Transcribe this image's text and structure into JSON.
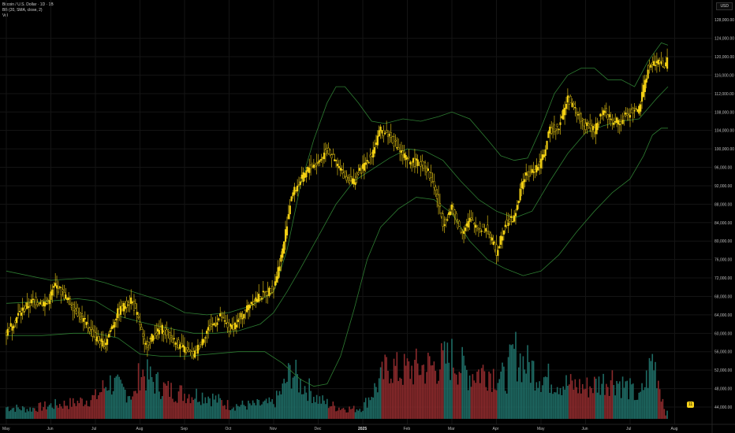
{
  "legend": {
    "line1": "Bitcoin / U.S. Dollar · 1D · 1B",
    "line2": "BB (20, SMA, close, 2)",
    "line3": "Vol"
  },
  "currency": "USD",
  "last_badge": "11",
  "colors": {
    "background": "#000000",
    "candle_up": "#f6d314",
    "candle_down": "#f6d314",
    "band": "#2e7d32",
    "vol_up": "#1e6b64",
    "vol_down": "#8b2a2c"
  },
  "chart_data": {
    "type": "candlestick",
    "title": "Bitcoin / U.S. Dollar · 1D · 1B",
    "y_axis": {
      "label": "USD",
      "ticks": [
        124000,
        120000,
        116000,
        112000,
        108000,
        104000,
        100000,
        96000,
        92000,
        88000,
        84000,
        80000,
        76000,
        72000,
        68000,
        64000,
        60000,
        56000,
        52000,
        48000,
        44000
      ],
      "tick_labels": [
        "124,000.00",
        "120,000.00",
        "116,000.00",
        "112,000.00",
        "108,000.00",
        "104,000.00",
        "100,000.00",
        "96,000.00",
        "92,000.00",
        "88,000.00",
        "84,000.00",
        "80,000.00",
        "76,000.00",
        "72,000.00",
        "68,000.00",
        "64,000.00",
        "60,000.00",
        "56,000.00",
        "52,000.00",
        "48,000.00",
        "44,000.00"
      ],
      "extra_top_label": "128,000.00",
      "range": [
        42000,
        131000
      ]
    },
    "x_axis": {
      "labels": [
        {
          "label": "May",
          "month_index": 0
        },
        {
          "label": "Jun",
          "month_index": 1
        },
        {
          "label": "Jul",
          "month_index": 2
        },
        {
          "label": "Aug",
          "month_index": 3
        },
        {
          "label": "Sep",
          "month_index": 4
        },
        {
          "label": "Oct",
          "month_index": 5
        },
        {
          "label": "Nov",
          "month_index": 6
        },
        {
          "label": "Dec",
          "month_index": 7
        },
        {
          "label": "2025",
          "month_index": 8
        },
        {
          "label": "Feb",
          "month_index": 9
        },
        {
          "label": "Mar",
          "month_index": 10
        },
        {
          "label": "Apr",
          "month_index": 11
        },
        {
          "label": "May",
          "month_index": 12
        },
        {
          "label": "Jun",
          "month_index": 13
        },
        {
          "label": "Jul",
          "month_index": 14
        },
        {
          "label": "Aug",
          "month_index": 15
        }
      ]
    },
    "price_path": [
      [
        0,
        60000
      ],
      [
        0.3,
        64500
      ],
      [
        0.6,
        67000
      ],
      [
        0.9,
        66500
      ],
      [
        1.1,
        70500
      ],
      [
        1.4,
        67000
      ],
      [
        1.8,
        62000
      ],
      [
        2.0,
        59000
      ],
      [
        2.2,
        57500
      ],
      [
        2.5,
        64500
      ],
      [
        2.8,
        67500
      ],
      [
        3.0,
        62000
      ],
      [
        3.1,
        57000
      ],
      [
        3.3,
        59500
      ],
      [
        3.5,
        61000
      ],
      [
        3.8,
        58000
      ],
      [
        4.0,
        56500
      ],
      [
        4.2,
        55000
      ],
      [
        4.5,
        60500
      ],
      [
        4.8,
        63500
      ],
      [
        5.0,
        61000
      ],
      [
        5.2,
        62500
      ],
      [
        5.5,
        67000
      ],
      [
        5.8,
        68500
      ],
      [
        6.0,
        70000
      ],
      [
        6.2,
        78000
      ],
      [
        6.4,
        90000
      ],
      [
        6.6,
        93000
      ],
      [
        6.8,
        96000
      ],
      [
        7.0,
        97000
      ],
      [
        7.2,
        100000
      ],
      [
        7.4,
        97000
      ],
      [
        7.6,
        94000
      ],
      [
        7.8,
        93000
      ],
      [
        8.0,
        96000
      ],
      [
        8.2,
        99000
      ],
      [
        8.4,
        104000
      ],
      [
        8.6,
        103000
      ],
      [
        8.8,
        100000
      ],
      [
        9.0,
        97500
      ],
      [
        9.2,
        97000
      ],
      [
        9.4,
        96500
      ],
      [
        9.6,
        92000
      ],
      [
        9.8,
        84000
      ],
      [
        10.0,
        87000
      ],
      [
        10.2,
        82000
      ],
      [
        10.4,
        84500
      ],
      [
        10.6,
        83000
      ],
      [
        10.8,
        82500
      ],
      [
        11.0,
        77500
      ],
      [
        11.2,
        84000
      ],
      [
        11.4,
        85000
      ],
      [
        11.6,
        93500
      ],
      [
        11.8,
        95000
      ],
      [
        12.0,
        97000
      ],
      [
        12.2,
        104000
      ],
      [
        12.4,
        105000
      ],
      [
        12.6,
        111000
      ],
      [
        12.8,
        108000
      ],
      [
        13.0,
        105000
      ],
      [
        13.2,
        104000
      ],
      [
        13.4,
        108500
      ],
      [
        13.6,
        106000
      ],
      [
        13.8,
        106000
      ],
      [
        14.0,
        108000
      ],
      [
        14.2,
        108500
      ],
      [
        14.4,
        117500
      ],
      [
        14.6,
        119000
      ],
      [
        14.8,
        118000
      ],
      [
        14.85,
        119500
      ]
    ],
    "bollinger_bands": {
      "upper": [
        [
          0,
          73500
        ],
        [
          1,
          71500
        ],
        [
          1.8,
          72000
        ],
        [
          2.2,
          71000
        ],
        [
          3.0,
          68500
        ],
        [
          3.5,
          67000
        ],
        [
          4.0,
          64500
        ],
        [
          4.5,
          64000
        ],
        [
          5.0,
          64500
        ],
        [
          5.5,
          66000
        ],
        [
          6.0,
          69000
        ],
        [
          6.3,
          78000
        ],
        [
          6.6,
          92000
        ],
        [
          6.9,
          102000
        ],
        [
          7.2,
          110000
        ],
        [
          7.4,
          113500
        ],
        [
          7.6,
          113500
        ],
        [
          7.9,
          110000
        ],
        [
          8.2,
          106000
        ],
        [
          8.5,
          105500
        ],
        [
          8.9,
          106500
        ],
        [
          9.3,
          106000
        ],
        [
          9.7,
          107000
        ],
        [
          10.0,
          108000
        ],
        [
          10.4,
          106500
        ],
        [
          10.8,
          102000
        ],
        [
          11.1,
          98500
        ],
        [
          11.4,
          97500
        ],
        [
          11.7,
          98000
        ],
        [
          12.0,
          104500
        ],
        [
          12.3,
          112000
        ],
        [
          12.6,
          116000
        ],
        [
          12.9,
          117500
        ],
        [
          13.2,
          117500
        ],
        [
          13.5,
          115000
        ],
        [
          13.8,
          115000
        ],
        [
          14.1,
          113500
        ],
        [
          14.4,
          119000
        ],
        [
          14.7,
          123000
        ],
        [
          14.85,
          122500
        ]
      ],
      "middle": [
        [
          0,
          66500
        ],
        [
          1,
          67000
        ],
        [
          1.6,
          67500
        ],
        [
          2.0,
          67000
        ],
        [
          2.6,
          63500
        ],
        [
          3.2,
          62000
        ],
        [
          3.7,
          61000
        ],
        [
          4.2,
          60000
        ],
        [
          4.7,
          60000
        ],
        [
          5.2,
          60500
        ],
        [
          5.7,
          62000
        ],
        [
          6.0,
          64500
        ],
        [
          6.3,
          69000
        ],
        [
          6.6,
          74000
        ],
        [
          7.0,
          81000
        ],
        [
          7.4,
          88000
        ],
        [
          7.8,
          93000
        ],
        [
          8.2,
          95500
        ],
        [
          8.6,
          98000
        ],
        [
          9.0,
          100000
        ],
        [
          9.4,
          99500
        ],
        [
          9.8,
          97500
        ],
        [
          10.2,
          93000
        ],
        [
          10.6,
          89000
        ],
        [
          11.0,
          86500
        ],
        [
          11.4,
          85000
        ],
        [
          11.8,
          86500
        ],
        [
          12.2,
          93000
        ],
        [
          12.6,
          99000
        ],
        [
          13.0,
          103500
        ],
        [
          13.4,
          105000
        ],
        [
          13.8,
          106000
        ],
        [
          14.2,
          106500
        ],
        [
          14.6,
          111000
        ],
        [
          14.85,
          113500
        ]
      ],
      "lower": [
        [
          0,
          59500
        ],
        [
          0.8,
          59500
        ],
        [
          1.5,
          60000
        ],
        [
          2.0,
          60000
        ],
        [
          2.5,
          59000
        ],
        [
          3.0,
          55500
        ],
        [
          3.5,
          55000
        ],
        [
          4.0,
          55000
        ],
        [
          4.6,
          55500
        ],
        [
          5.2,
          56000
        ],
        [
          5.8,
          56000
        ],
        [
          6.2,
          53500
        ],
        [
          6.6,
          50000
        ],
        [
          6.9,
          48500
        ],
        [
          7.2,
          49000
        ],
        [
          7.5,
          55000
        ],
        [
          7.8,
          65000
        ],
        [
          8.1,
          76000
        ],
        [
          8.4,
          83000
        ],
        [
          8.8,
          87000
        ],
        [
          9.2,
          89500
        ],
        [
          9.6,
          89000
        ],
        [
          10.0,
          86000
        ],
        [
          10.4,
          80000
        ],
        [
          10.8,
          76000
        ],
        [
          11.2,
          74000
        ],
        [
          11.6,
          72500
        ],
        [
          12.0,
          73500
        ],
        [
          12.4,
          77000
        ],
        [
          12.8,
          82000
        ],
        [
          13.2,
          86500
        ],
        [
          13.6,
          90500
        ],
        [
          14.0,
          93500
        ],
        [
          14.3,
          98500
        ],
        [
          14.5,
          103000
        ],
        [
          14.7,
          104500
        ],
        [
          14.85,
          104500
        ]
      ]
    },
    "volume_profile": [
      [
        0,
        0.12
      ],
      [
        0.5,
        0.1
      ],
      [
        1.0,
        0.14
      ],
      [
        1.5,
        0.16
      ],
      [
        2.0,
        0.22
      ],
      [
        2.3,
        0.38
      ],
      [
        2.6,
        0.3
      ],
      [
        2.9,
        0.24
      ],
      [
        3.0,
        0.5
      ],
      [
        3.2,
        0.42
      ],
      [
        3.6,
        0.3
      ],
      [
        4.0,
        0.26
      ],
      [
        4.5,
        0.24
      ],
      [
        5.0,
        0.14
      ],
      [
        5.5,
        0.14
      ],
      [
        6.0,
        0.16
      ],
      [
        6.2,
        0.3
      ],
      [
        6.4,
        0.5
      ],
      [
        6.6,
        0.36
      ],
      [
        6.8,
        0.3
      ],
      [
        7.0,
        0.2
      ],
      [
        7.4,
        0.12
      ],
      [
        7.8,
        0.1
      ],
      [
        8.0,
        0.12
      ],
      [
        8.4,
        0.4
      ],
      [
        8.6,
        0.56
      ],
      [
        8.8,
        0.48
      ],
      [
        9.2,
        0.52
      ],
      [
        9.6,
        0.54
      ],
      [
        10.0,
        0.62
      ],
      [
        10.4,
        0.46
      ],
      [
        10.8,
        0.5
      ],
      [
        11.2,
        0.4
      ],
      [
        11.4,
        0.68
      ],
      [
        11.6,
        0.58
      ],
      [
        11.8,
        0.52
      ],
      [
        12.0,
        0.44
      ],
      [
        12.5,
        0.36
      ],
      [
        13.0,
        0.32
      ],
      [
        13.4,
        0.38
      ],
      [
        13.6,
        0.42
      ],
      [
        14.0,
        0.3
      ],
      [
        14.2,
        0.2
      ],
      [
        14.4,
        0.44
      ],
      [
        14.5,
        0.62
      ],
      [
        14.6,
        0.48
      ],
      [
        14.8,
        0.06
      ]
    ]
  }
}
